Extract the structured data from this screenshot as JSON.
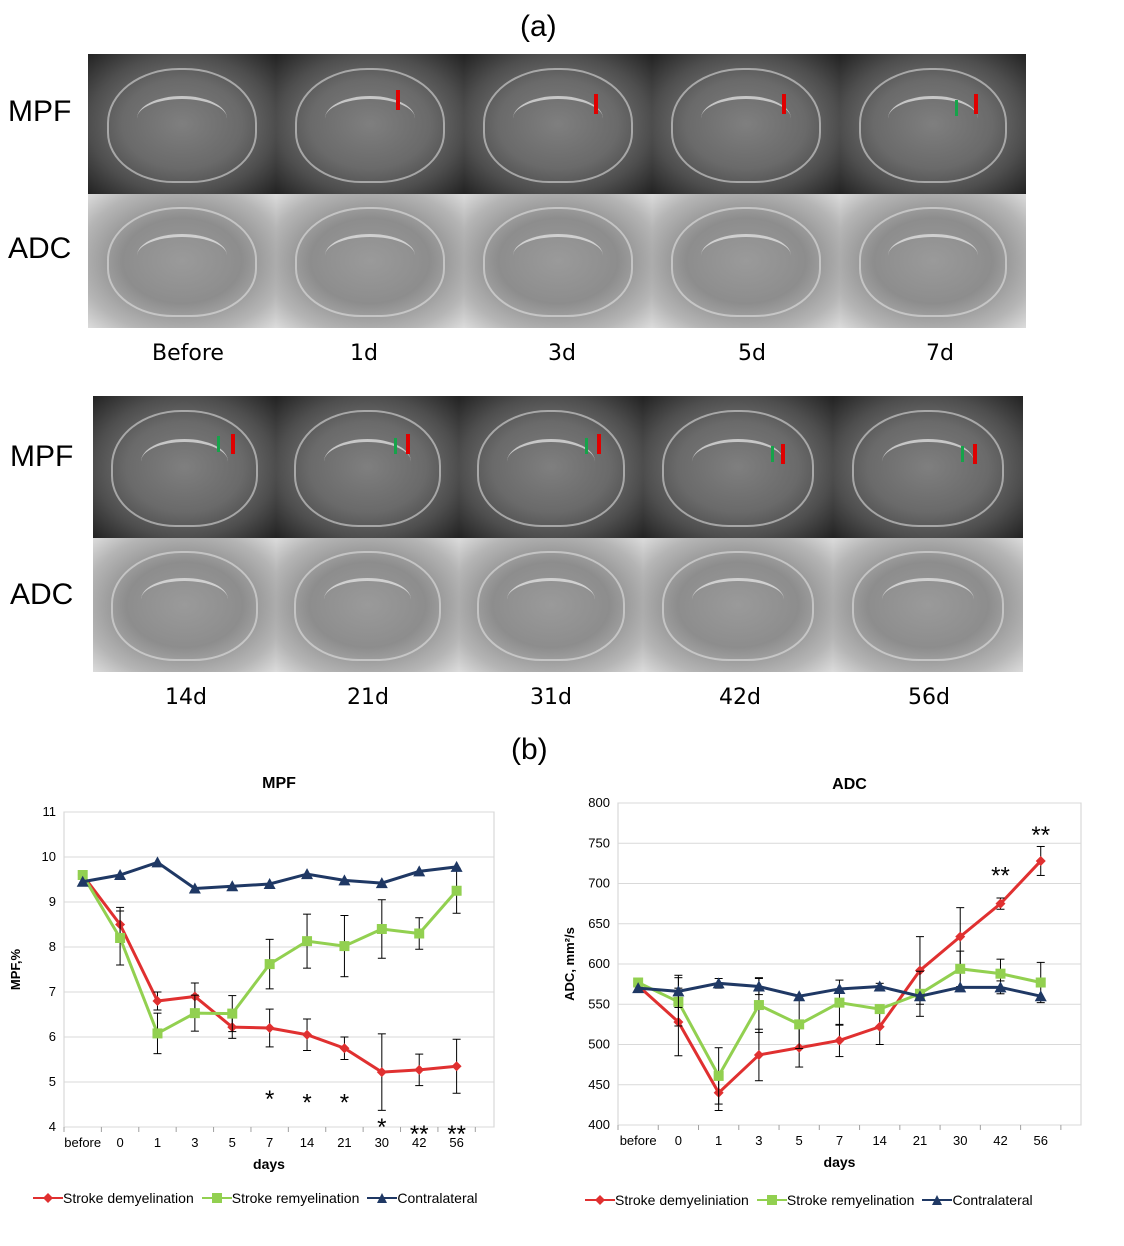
{
  "panel_a_label": "(a)",
  "panel_b_label": "(b)",
  "row_labels": {
    "mpf": "MPF",
    "adc": "ADC"
  },
  "top_timepoints": [
    "Before",
    "1d",
    "3d",
    "5d",
    "7d"
  ],
  "bottom_timepoints": [
    "14d",
    "21d",
    "31d",
    "42d",
    "56d"
  ],
  "colors": {
    "red": "#e03030",
    "green": "#92d050",
    "navy": "#1f3864",
    "arrow_red": "#e00000",
    "arrow_green": "#16a34a"
  },
  "legend": [
    "Stroke demyelination",
    "Stroke remyelination",
    "Contralateral"
  ],
  "legend_right": [
    "Stroke demyeliniation",
    "Stroke remyelination",
    "Contralateral"
  ],
  "chart_data": [
    {
      "type": "line",
      "title": "MPF",
      "xlabel": "days",
      "ylabel": "MPF,%",
      "categories": [
        "before",
        "0",
        "1",
        "3",
        "5",
        "7",
        "14",
        "21",
        "30",
        "42",
        "56"
      ],
      "ylim": [
        4,
        11
      ],
      "yticks": [
        4,
        5,
        6,
        7,
        8,
        9,
        10,
        11
      ],
      "series": [
        {
          "name": "Stroke demyelination",
          "color": "#e03030",
          "marker": "diamond",
          "values": [
            null,
            8.5,
            6.8,
            6.9,
            6.22,
            6.2,
            6.05,
            5.75,
            5.22,
            5.27,
            5.35
          ],
          "errors": [
            null,
            0.38,
            0.2,
            0.3,
            0.25,
            0.42,
            0.35,
            0.25,
            0.85,
            0.35,
            0.6
          ],
          "start_value": 9.6
        },
        {
          "name": "Stroke remyelination",
          "color": "#92d050",
          "marker": "square",
          "values": [
            null,
            8.2,
            6.08,
            6.53,
            6.52,
            7.62,
            8.13,
            8.02,
            8.4,
            8.3,
            9.25
          ],
          "errors": [
            null,
            0.6,
            0.45,
            0.4,
            0.4,
            0.55,
            0.6,
            0.68,
            0.65,
            0.35,
            0.5
          ],
          "start_value": 9.6
        },
        {
          "name": "Contralateral",
          "color": "#1f3864",
          "marker": "triangle",
          "values": [
            null,
            9.6,
            9.88,
            9.3,
            9.35,
            9.4,
            9.62,
            9.48,
            9.42,
            9.68,
            9.78
          ],
          "errors": [
            null,
            0,
            0,
            0,
            0,
            0,
            0,
            0,
            0,
            0,
            0
          ],
          "start_value": 9.45
        }
      ],
      "annotations": [
        {
          "text": "*",
          "category": "7",
          "y": 4.62
        },
        {
          "text": "*",
          "category": "14",
          "y": 4.55
        },
        {
          "text": "*",
          "category": "21",
          "y": 4.55
        },
        {
          "text": "*",
          "category": "30",
          "y": 4.0
        },
        {
          "text": "**",
          "category": "42",
          "y": 3.85
        },
        {
          "text": "**",
          "category": "56",
          "y": 3.85
        }
      ]
    },
    {
      "type": "line",
      "title": "ADC",
      "xlabel": "days",
      "ylabel": "ADC, mm²/s",
      "categories": [
        "before",
        "0",
        "1",
        "3",
        "5",
        "7",
        "14",
        "21",
        "30",
        "42",
        "56"
      ],
      "ylim": [
        400,
        800
      ],
      "yticks": [
        400,
        450,
        500,
        550,
        600,
        650,
        700,
        750,
        800
      ],
      "series": [
        {
          "name": "Stroke demyeliniation",
          "color": "#e03030",
          "marker": "diamond",
          "values": [
            null,
            528,
            440,
            487,
            496,
            505,
            522,
            592,
            634,
            675,
            728
          ],
          "errors": [
            null,
            42,
            22,
            32,
            24,
            20,
            22,
            42,
            36,
            7,
            18
          ],
          "start_value": 573
        },
        {
          "name": "Stroke remyelination",
          "color": "#92d050",
          "marker": "square",
          "values": [
            null,
            553,
            461,
            549,
            525,
            552,
            544,
            563,
            594,
            588,
            577
          ],
          "errors": [
            null,
            30,
            35,
            34,
            30,
            28,
            5,
            28,
            22,
            18,
            25
          ],
          "start_value": 577
        },
        {
          "name": "Contralateral",
          "color": "#1f3864",
          "marker": "triangle",
          "values": [
            null,
            566,
            576,
            572,
            560,
            569,
            572,
            560,
            571,
            571,
            560
          ],
          "errors": [
            null,
            20,
            6,
            10,
            0,
            0,
            4,
            0,
            0,
            8,
            0
          ],
          "start_value": 570
        }
      ],
      "annotations": [
        {
          "text": "**",
          "category": "42",
          "y": 710
        },
        {
          "text": "**",
          "category": "56",
          "y": 760
        }
      ]
    }
  ]
}
